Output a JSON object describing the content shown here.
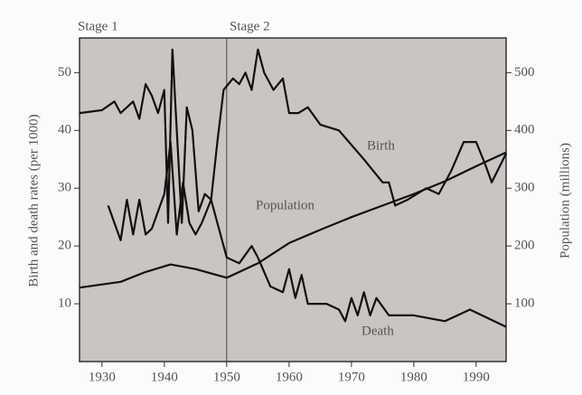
{
  "chart_data": {
    "type": "line",
    "y_label": "Birth and death rates (per 1000)",
    "y2_label": "Population (millions)",
    "stage_labels": [
      "Stage 1",
      "Stage 2"
    ],
    "stage_divider": 1950,
    "xlim": [
      1926.4,
      1994.8
    ],
    "xticks": [
      1930,
      1940,
      1950,
      1960,
      1970,
      1980,
      1990
    ],
    "ylim": [
      0,
      56
    ],
    "yticks": [
      10,
      20,
      30,
      40,
      50
    ],
    "y2lim": [
      0,
      560
    ],
    "y2ticks": [
      100,
      200,
      300,
      400,
      500
    ],
    "series": [
      {
        "name": "Birth",
        "color": "#111111",
        "x": [
          1926.4,
          1930,
          1932,
          1933,
          1935,
          1936,
          1937,
          1938,
          1939,
          1940,
          1940.6,
          1941.3,
          1942,
          1942.8,
          1943.6,
          1944.5,
          1945.5,
          1946.5,
          1947.5,
          1948.5,
          1949.5,
          1951,
          1952,
          1953,
          1954,
          1955,
          1956,
          1957.5,
          1959,
          1960,
          1961.5,
          1963,
          1965,
          1968,
          1972,
          1975,
          1976,
          1977,
          1979,
          1982,
          1984,
          1986,
          1988,
          1990,
          1991.5,
          1992.5,
          1994.8
        ],
        "values": [
          43,
          43.5,
          45,
          43,
          45,
          42,
          48,
          46,
          43,
          47,
          24,
          54,
          40,
          24,
          44,
          40,
          26,
          29,
          28,
          38,
          47,
          49,
          48,
          50,
          47,
          54,
          50,
          47,
          49,
          43,
          43,
          44,
          41,
          40,
          35,
          31,
          31,
          27,
          28,
          30,
          29,
          33,
          38,
          38,
          34,
          31,
          36
        ]
      },
      {
        "name": "Death",
        "color": "#111111",
        "x": [
          1931,
          1933,
          1934,
          1935,
          1936,
          1937,
          1938,
          1940,
          1941,
          1942,
          1943,
          1944,
          1945,
          1946,
          1947.5,
          1948.5,
          1950,
          1952,
          1954,
          1955,
          1957,
          1959,
          1960,
          1961,
          1962,
          1963,
          1966,
          1968,
          1969,
          1970,
          1971,
          1972,
          1973,
          1974,
          1976,
          1980,
          1985,
          1989,
          1994.8
        ],
        "values": [
          27,
          21,
          28,
          22,
          28,
          22,
          23,
          29,
          38,
          22,
          31,
          24,
          22,
          24,
          28,
          24,
          18,
          17,
          20,
          18,
          13,
          12,
          16,
          11,
          15,
          10,
          10,
          9,
          7,
          11,
          8,
          12,
          8,
          11,
          8,
          8,
          7,
          9,
          6
        ]
      },
      {
        "name": "Population",
        "color": "#111111",
        "axis": "y2",
        "x": [
          1926.4,
          1933,
          1937,
          1941,
          1945,
          1950,
          1955,
          1960,
          1965,
          1970,
          1975,
          1980,
          1985,
          1990,
          1994.8
        ],
        "values": [
          128,
          138,
          155,
          168,
          160,
          145,
          170,
          205,
          228,
          250,
          270,
          290,
          312,
          338,
          362
        ]
      }
    ]
  }
}
